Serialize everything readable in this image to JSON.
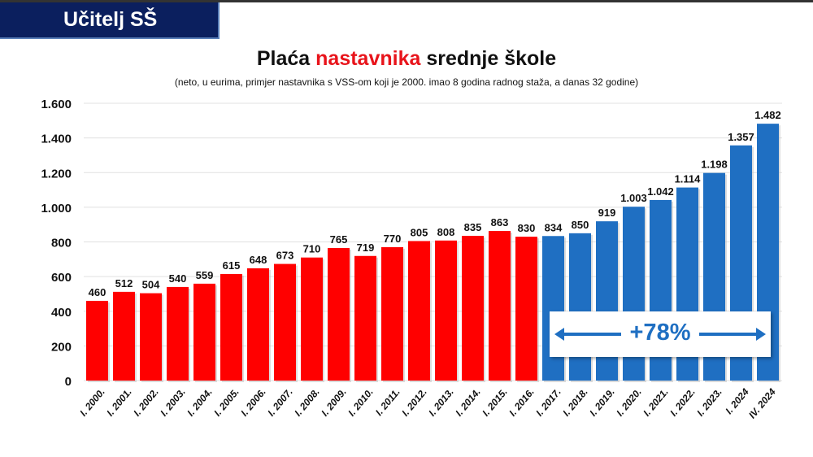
{
  "header": {
    "label": "Učitelj SŠ"
  },
  "chart_data": {
    "type": "bar",
    "title_parts": [
      "Plaća ",
      "nastavnika",
      " srednje škole"
    ],
    "subtitle": "(neto, u eurima, primjer nastavnika s VSS-om koji je 2000. imao 8 godina radnog staža, a danas 32 godine)",
    "categories": [
      "I. 2000.",
      "I. 2001.",
      "I. 2002.",
      "I. 2003.",
      "I. 2004.",
      "I. 2005.",
      "I. 2006.",
      "I. 2007.",
      "I. 2008.",
      "I. 2009.",
      "I. 2010.",
      "I. 2011.",
      "I. 2012.",
      "I. 2013.",
      "I. 2014.",
      "I. 2015.",
      "I. 2016.",
      "I. 2017.",
      "I. 2018.",
      "I. 2019.",
      "I. 2020.",
      "I. 2021.",
      "I. 2022.",
      "I. 2023.",
      "I. 2024",
      "IV. 2024"
    ],
    "values": [
      460,
      512,
      504,
      540,
      559,
      615,
      648,
      673,
      710,
      765,
      719,
      770,
      805,
      808,
      835,
      863,
      830,
      834,
      850,
      919,
      1003,
      1042,
      1114,
      1198,
      1357,
      1482
    ],
    "value_labels": [
      "460",
      "512",
      "504",
      "540",
      "559",
      "615",
      "648",
      "673",
      "710",
      "765",
      "719",
      "770",
      "805",
      "808",
      "835",
      "863",
      "830",
      "834",
      "850",
      "919",
      "1.003",
      "1.042",
      "1.114",
      "1.198",
      "1.357",
      "1.482"
    ],
    "ylim": [
      0,
      1600
    ],
    "yticks": [
      0,
      200,
      400,
      600,
      800,
      1000,
      1200,
      1400,
      1600
    ],
    "ytick_labels": [
      "0",
      "200",
      "400",
      "600",
      "800",
      "1.000",
      "1.200",
      "1.400",
      "1.600"
    ],
    "grid": true,
    "colors": {
      "red": "#ff0000",
      "blue": "#1f6fc2"
    },
    "red_count": 17,
    "annotation": "+78%"
  }
}
